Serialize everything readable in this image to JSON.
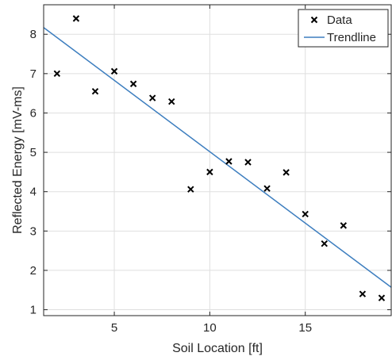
{
  "chart_data": {
    "type": "scatter",
    "title": "",
    "xlabel": "Soil Location [ft]",
    "ylabel": "Reflected Energy [mV-ms]",
    "xlim": [
      1.3,
      19.5
    ],
    "ylim": [
      0.85,
      8.75
    ],
    "xticks": [
      5,
      10,
      15
    ],
    "yticks": [
      1,
      2,
      3,
      4,
      5,
      6,
      7,
      8
    ],
    "grid": true,
    "legend_position": "top-right",
    "series": [
      {
        "name": "Data",
        "kind": "scatter",
        "marker": "x",
        "color": "#000000",
        "points": [
          {
            "x": 2,
            "y": 7.0
          },
          {
            "x": 3,
            "y": 8.4
          },
          {
            "x": 4,
            "y": 6.55
          },
          {
            "x": 5,
            "y": 7.06
          },
          {
            "x": 6,
            "y": 6.74
          },
          {
            "x": 7,
            "y": 6.38
          },
          {
            "x": 8,
            "y": 6.29
          },
          {
            "x": 9,
            "y": 4.06
          },
          {
            "x": 10,
            "y": 4.5
          },
          {
            "x": 11,
            "y": 4.77
          },
          {
            "x": 12,
            "y": 4.75
          },
          {
            "x": 13,
            "y": 4.08
          },
          {
            "x": 14,
            "y": 4.49
          },
          {
            "x": 15,
            "y": 3.43
          },
          {
            "x": 16,
            "y": 2.68
          },
          {
            "x": 17,
            "y": 3.14
          },
          {
            "x": 18,
            "y": 1.4
          },
          {
            "x": 19,
            "y": 1.3
          }
        ]
      },
      {
        "name": "Trendline",
        "kind": "line",
        "color": "#3d7ebf",
        "points": [
          {
            "x": 1.3,
            "y": 8.17
          },
          {
            "x": 19.5,
            "y": 1.57
          }
        ]
      }
    ]
  }
}
